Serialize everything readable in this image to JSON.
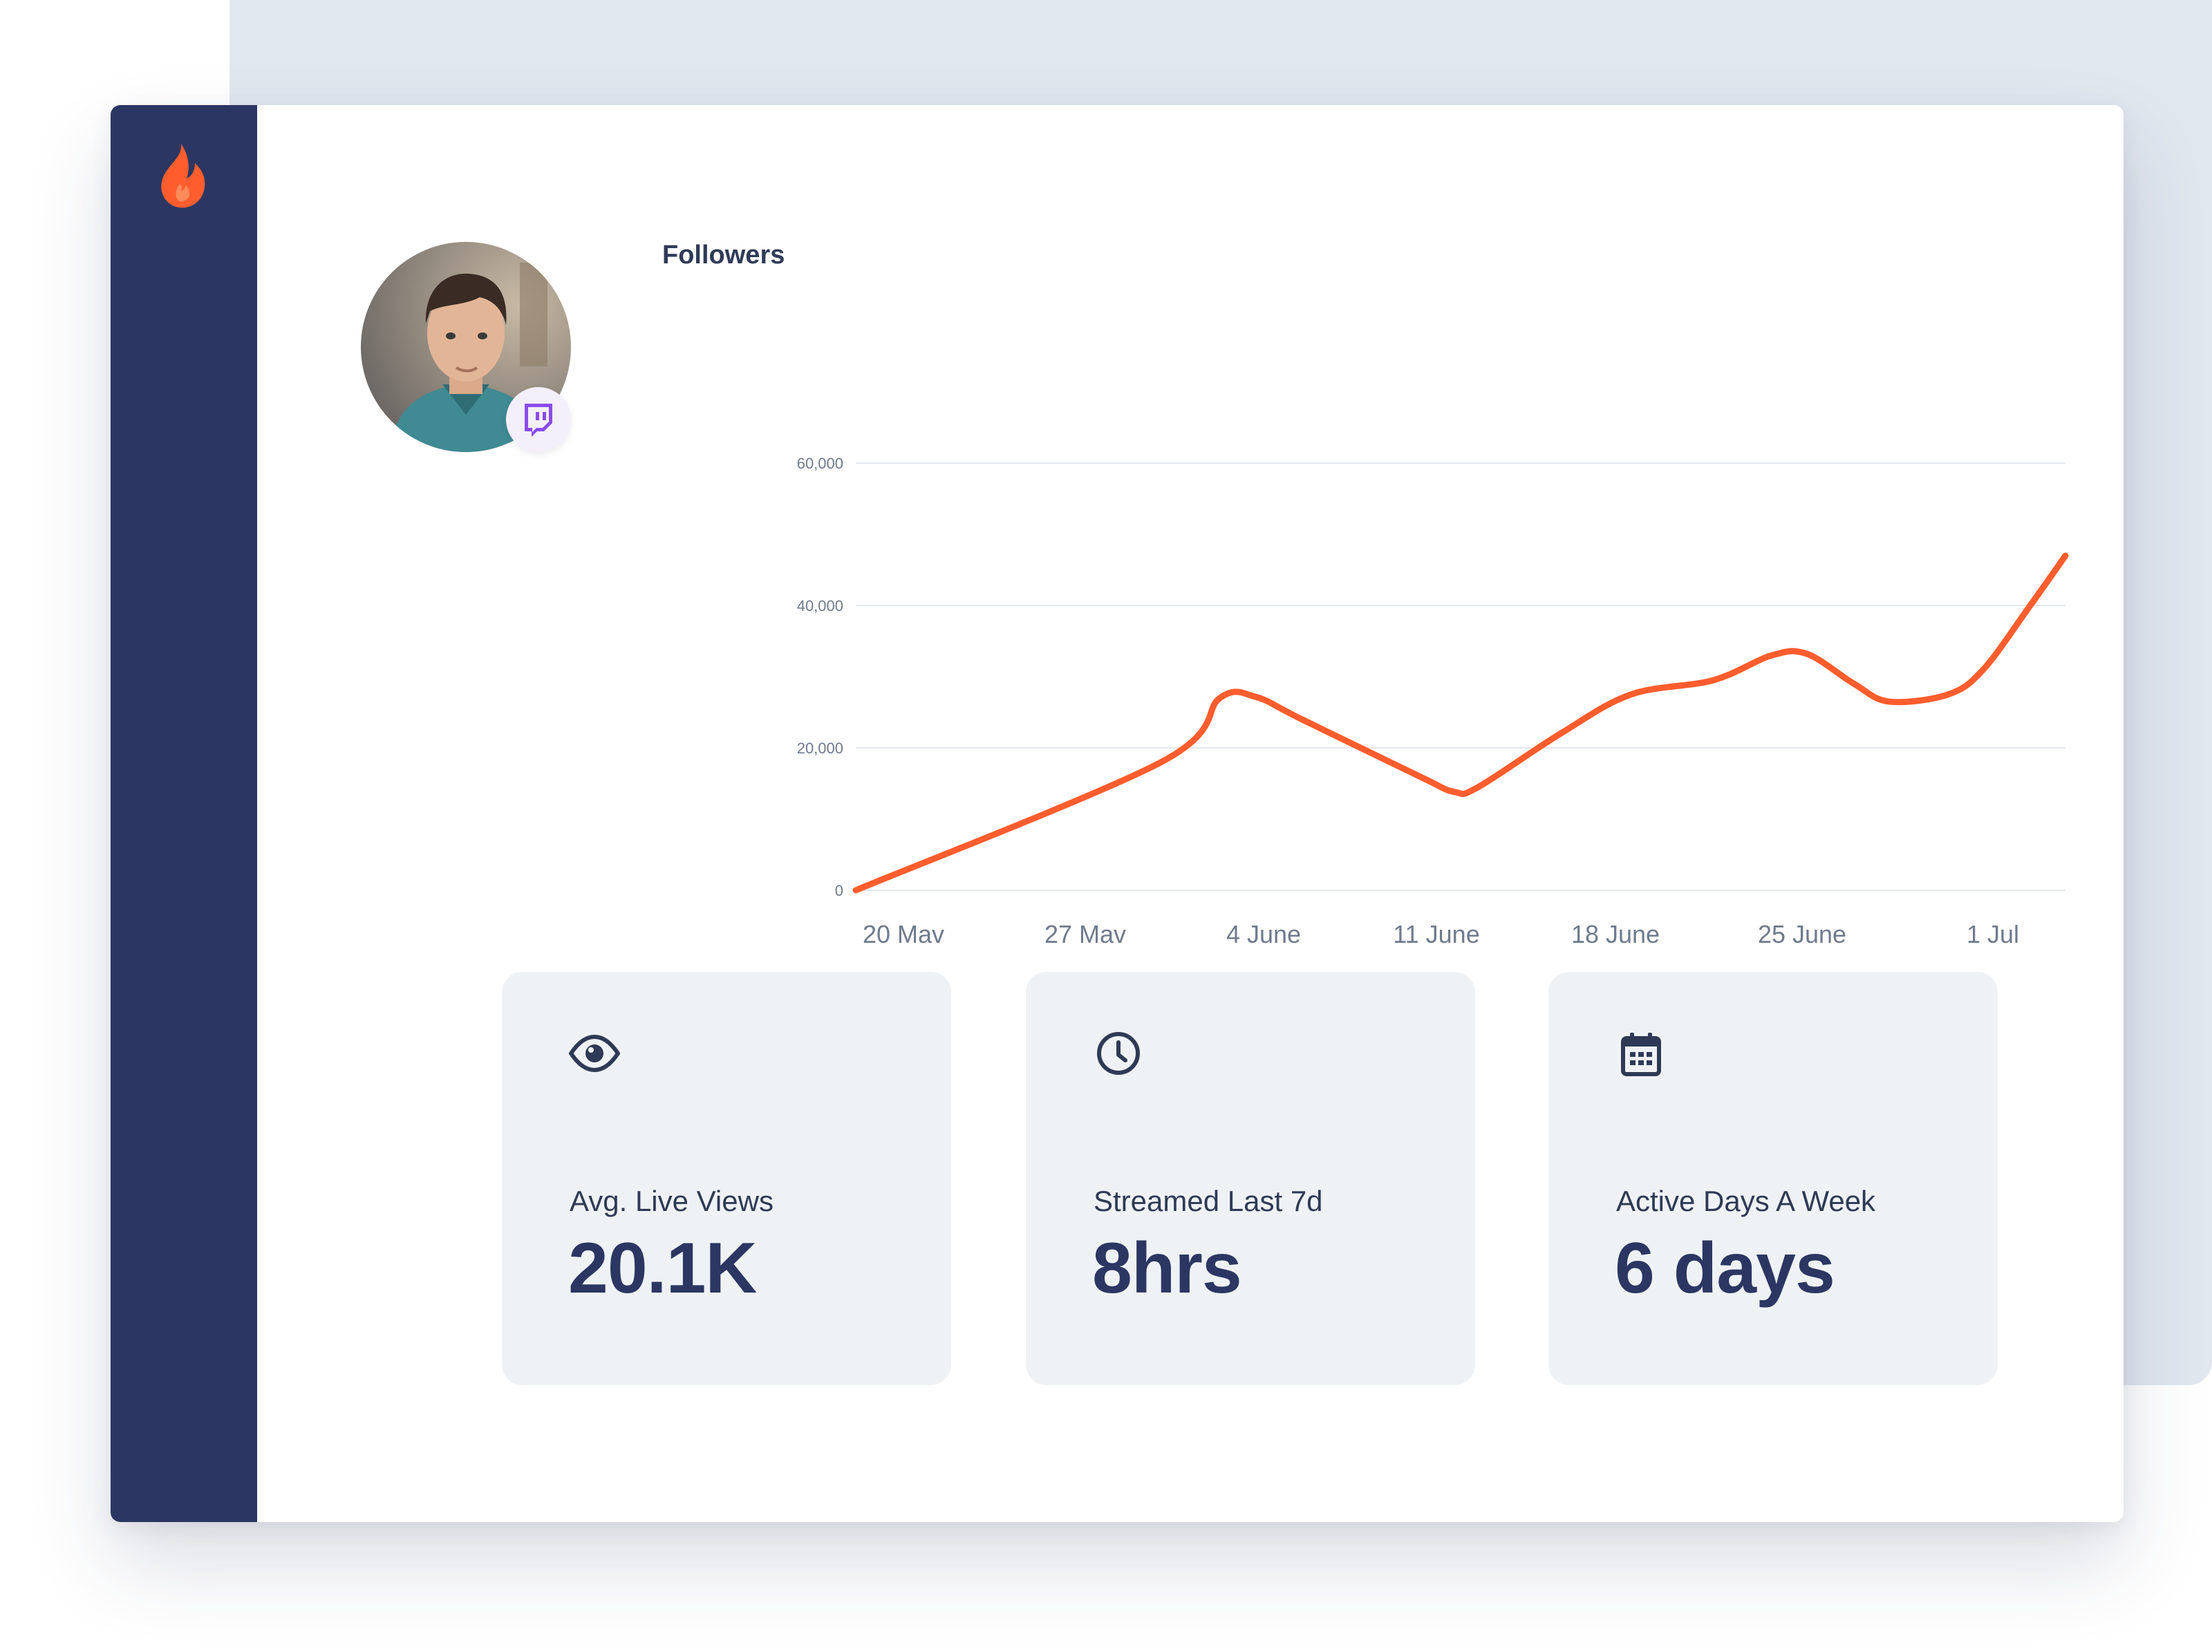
{
  "colors": {
    "sidebar": "#2b3762",
    "accent": "#ff5d2e",
    "card_bg": "#eff2f5",
    "text_dark": "#2b3762",
    "twitch": "#8a4dea"
  },
  "sidebar": {
    "logo_icon": "flame-icon"
  },
  "profile": {
    "avatar_icon": "user-avatar",
    "badge_icon": "twitch-icon"
  },
  "chart_data": {
    "type": "line",
    "title": "Followers",
    "xlabel": "",
    "ylabel": "",
    "ylim": [
      0,
      60000
    ],
    "yticks": [
      0,
      20000,
      40000,
      60000
    ],
    "ytick_labels": [
      "0",
      "20,000",
      "40,000",
      "60,000"
    ],
    "xtick_labels": [
      "20 Mav",
      "27 Mav",
      "4 June",
      "11 June",
      "18 June",
      "25 June",
      "1 Jul"
    ],
    "grid": true,
    "series": [
      {
        "color": "#ff5d2e",
        "points": [
          [
            0,
            0
          ],
          [
            2.6,
            18000
          ],
          [
            3.1,
            27000
          ],
          [
            3.4,
            27200
          ],
          [
            3.8,
            24000
          ],
          [
            4.8,
            16000
          ],
          [
            5.1,
            13800
          ],
          [
            5.3,
            14500
          ],
          [
            6.0,
            22000
          ],
          [
            6.6,
            27500
          ],
          [
            7.3,
            29500
          ],
          [
            7.8,
            33000
          ],
          [
            8.1,
            33200
          ],
          [
            8.5,
            29000
          ],
          [
            8.8,
            26500
          ],
          [
            9.3,
            27500
          ],
          [
            9.6,
            31000
          ],
          [
            10.0,
            40000
          ],
          [
            10.3,
            47000
          ]
        ],
        "x_range": [
          0,
          10.3
        ]
      }
    ]
  },
  "stats": [
    {
      "icon": "eye-icon",
      "label": "Avg. Live Views",
      "value": "20.1K"
    },
    {
      "icon": "clock-icon",
      "label": "Streamed Last 7d",
      "value": "8hrs"
    },
    {
      "icon": "calendar-icon",
      "label": "Active Days A Week",
      "value": "6 days"
    }
  ]
}
